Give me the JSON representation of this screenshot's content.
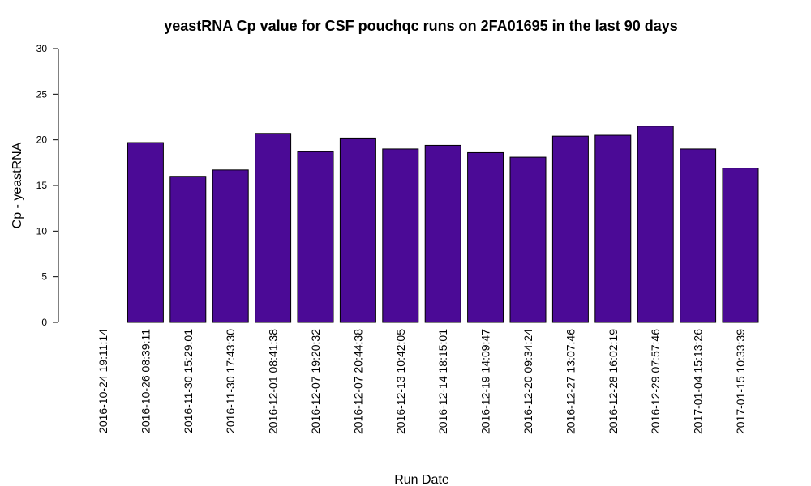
{
  "chart_data": {
    "type": "bar",
    "title": "yeastRNA Cp value for CSF pouchqc runs on 2FA01695 in the last 90 days",
    "xlabel": "Run Date",
    "ylabel": "Cp - yeastRNA",
    "ylim": [
      0,
      30
    ],
    "yticks": [
      0,
      5,
      10,
      15,
      20,
      25,
      30
    ],
    "grid": false,
    "bar_color": "#4B0A96",
    "categories": [
      "2016-10-24 19:11:14",
      "2016-10-26 08:39:11",
      "2016-11-30 15:29:01",
      "2016-11-30 17:43:30",
      "2016-12-01 08:41:38",
      "2016-12-07 19:20:32",
      "2016-12-07 20:44:38",
      "2016-12-13 10:42:05",
      "2016-12-14 18:15:01",
      "2016-12-19 14:09:47",
      "2016-12-20 09:34:24",
      "2016-12-27 13:07:46",
      "2016-12-28 16:02:19",
      "2016-12-29 07:57:46",
      "2017-01-04 15:13:26",
      "2017-01-15 10:33:39"
    ],
    "values": [
      0,
      19.7,
      16.0,
      16.7,
      20.7,
      18.7,
      20.2,
      19.0,
      19.4,
      18.6,
      18.1,
      20.4,
      20.5,
      21.5,
      19.0,
      16.9
    ]
  }
}
